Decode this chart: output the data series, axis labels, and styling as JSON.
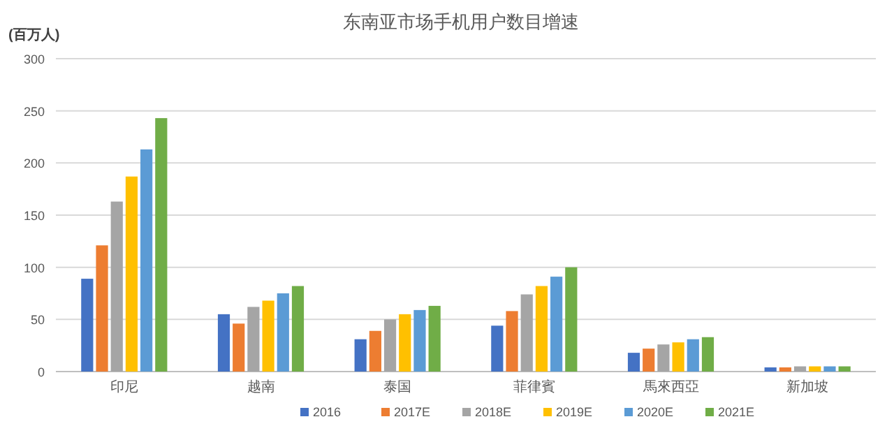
{
  "chart_data": {
    "type": "bar",
    "title": "东南亚市场手机用户数目增速",
    "ylabel": "(百万人)",
    "categories": [
      "印尼",
      "越南",
      "泰国",
      "菲律賓",
      "馬來西亞",
      "新加坡"
    ],
    "series": [
      {
        "name": "2016",
        "color": "#4472c4",
        "values": [
          89,
          55,
          31,
          44,
          18,
          4
        ]
      },
      {
        "name": "2017E",
        "color": "#ed7d31",
        "values": [
          121,
          46,
          39,
          58,
          22,
          4
        ]
      },
      {
        "name": "2018E",
        "color": "#a5a5a5",
        "values": [
          163,
          62,
          50,
          74,
          26,
          5
        ]
      },
      {
        "name": "2019E",
        "color": "#ffc000",
        "values": [
          187,
          68,
          55,
          82,
          28,
          5
        ]
      },
      {
        "name": "2020E",
        "color": "#5b9bd5",
        "values": [
          213,
          75,
          59,
          91,
          31,
          5
        ]
      },
      {
        "name": "2021E",
        "color": "#70ad47",
        "values": [
          243,
          82,
          63,
          100,
          33,
          5
        ]
      }
    ],
    "ylim": [
      0,
      300
    ],
    "yticks": [
      0,
      50,
      100,
      150,
      200,
      250,
      300
    ],
    "grid": "y",
    "legend": "bottom"
  }
}
